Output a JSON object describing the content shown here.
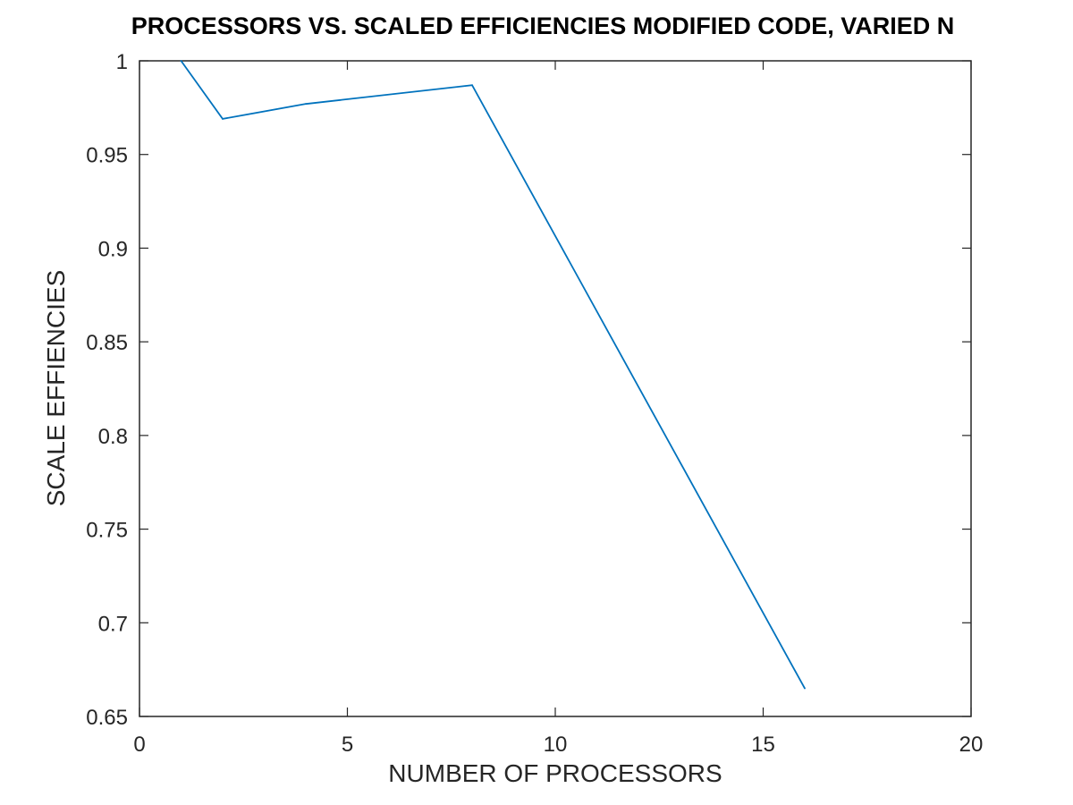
{
  "chart_data": {
    "type": "line",
    "title": "PROCESSORS VS. SCALED EFFICIENCIES MODIFIED CODE, VARIED N",
    "xlabel": "NUMBER OF PROCESSORS",
    "ylabel": "SCALE EFFIENCIES",
    "xlim": [
      0,
      20
    ],
    "ylim": [
      0.65,
      1
    ],
    "xticks": [
      0,
      5,
      10,
      15,
      20
    ],
    "xtick_labels": [
      "0",
      "5",
      "10",
      "15",
      "20"
    ],
    "yticks": [
      0.65,
      0.7,
      0.75,
      0.8,
      0.85,
      0.9,
      0.95,
      1
    ],
    "ytick_labels": [
      "0.65",
      "0.7",
      "0.75",
      "0.8",
      "0.85",
      "0.9",
      "0.95",
      "1"
    ],
    "grid": false,
    "series": [
      {
        "x": [
          1,
          2,
          4,
          8,
          16
        ],
        "y": [
          1.0,
          0.969,
          0.977,
          0.987,
          0.665
        ],
        "color": "#0072bd"
      }
    ]
  }
}
